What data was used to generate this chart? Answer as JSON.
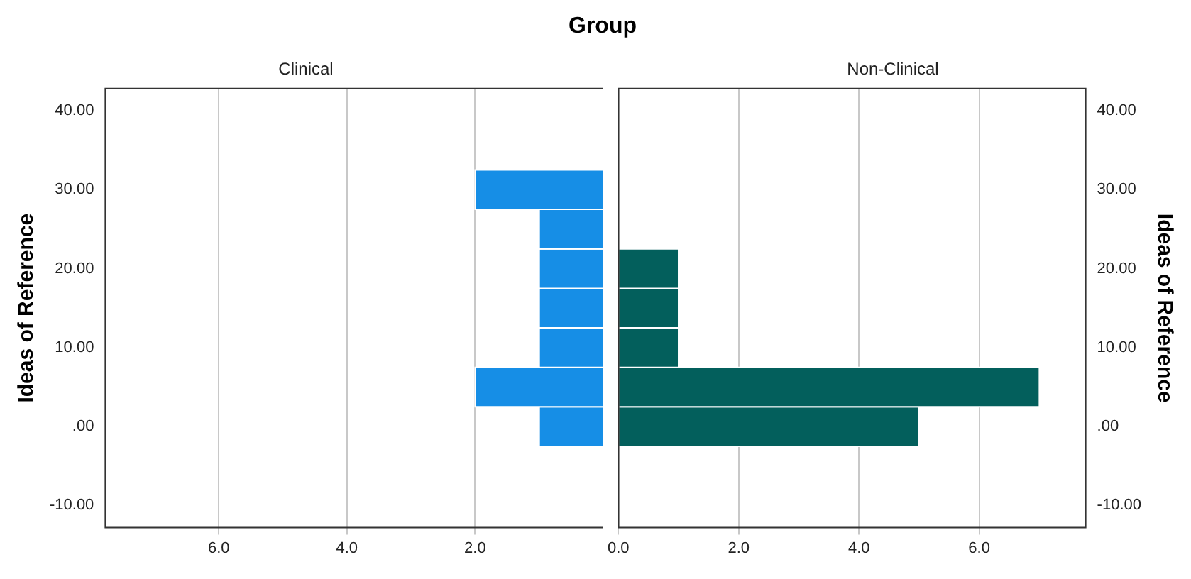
{
  "chart_data": [
    {
      "type": "histogram",
      "orientation": "horizontal",
      "title": "Group",
      "subtitle": "Clinical",
      "ylabel": "Ideas of Reference",
      "bins": [
        -2.5,
        2.5,
        7.5,
        12.5,
        17.5,
        22.5,
        27.5,
        32.5
      ],
      "values": [
        1,
        2,
        1,
        1,
        1,
        1,
        2
      ],
      "color": "#168ee6",
      "xlim": [
        7.77,
        0
      ],
      "xticks": [
        {
          "value": 0,
          "label": null
        },
        {
          "value": 2,
          "label": "2.0"
        },
        {
          "value": 4,
          "label": "4.0"
        },
        {
          "value": 6,
          "label": "6.0"
        }
      ],
      "ylim": [
        -12.8,
        42.8
      ],
      "yticks": [
        {
          "value": -10,
          "label": "-10.00"
        },
        {
          "value": 0,
          "label": ".00"
        },
        {
          "value": 10,
          "label": "10.00"
        },
        {
          "value": 20,
          "label": "20.00"
        },
        {
          "value": 30,
          "label": "30.00"
        },
        {
          "value": 40,
          "label": "40.00"
        }
      ],
      "grid": "x"
    },
    {
      "type": "histogram",
      "orientation": "horizontal",
      "subtitle": "Non-Clinical",
      "ylabel": "Ideas of Reference",
      "bins": [
        -2.5,
        2.5,
        7.5,
        12.5,
        17.5,
        22.5,
        27.5,
        32.5
      ],
      "values": [
        5,
        7,
        1,
        1,
        1,
        0,
        0
      ],
      "color": "#035f5c",
      "xlim": [
        0,
        7.77
      ],
      "xticks": [
        {
          "value": 0,
          "label": "0.0"
        },
        {
          "value": 2,
          "label": "2.0"
        },
        {
          "value": 4,
          "label": "4.0"
        },
        {
          "value": 6,
          "label": "6.0"
        }
      ],
      "ylim": [
        -12.8,
        42.8
      ],
      "yticks": [
        {
          "value": -10,
          "label": "-10.00"
        },
        {
          "value": 0,
          "label": ".00"
        },
        {
          "value": 10,
          "label": "10.00"
        },
        {
          "value": 20,
          "label": "20.00"
        },
        {
          "value": 30,
          "label": "30.00"
        },
        {
          "value": 40,
          "label": "40.00"
        }
      ],
      "grid": "x"
    }
  ]
}
